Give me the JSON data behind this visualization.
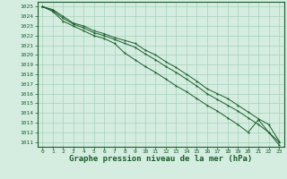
{
  "x": [
    0,
    1,
    2,
    3,
    4,
    5,
    6,
    7,
    8,
    9,
    10,
    11,
    12,
    13,
    14,
    15,
    16,
    17,
    18,
    19,
    20,
    21,
    22,
    23
  ],
  "line1": [
    1025,
    1024.7,
    1024.0,
    1023.3,
    1023.0,
    1022.5,
    1022.2,
    1021.8,
    1021.5,
    1021.2,
    1020.5,
    1020.0,
    1019.3,
    1018.7,
    1018.0,
    1017.3,
    1016.5,
    1016.0,
    1015.5,
    1014.8,
    1014.1,
    1013.4,
    1012.8,
    1011.1
  ],
  "line2": [
    1025,
    1024.6,
    1023.8,
    1023.2,
    1022.8,
    1022.3,
    1022.0,
    1021.6,
    1021.2,
    1020.8,
    1020.1,
    1019.5,
    1018.8,
    1018.2,
    1017.5,
    1016.8,
    1016.0,
    1015.4,
    1014.8,
    1014.2,
    1013.5,
    1012.8,
    1012.0,
    1011.0
  ],
  "line3": [
    1025,
    1024.5,
    1023.5,
    1023.0,
    1022.5,
    1022.0,
    1021.7,
    1021.2,
    1020.2,
    1019.5,
    1018.8,
    1018.2,
    1017.5,
    1016.8,
    1016.2,
    1015.5,
    1014.8,
    1014.2,
    1013.5,
    1012.8,
    1012.0,
    1013.3,
    1012.0,
    1010.7
  ],
  "bg_color": "#d4ede0",
  "grid_color": "#a8cfb8",
  "line_color": "#1a5c2a",
  "title": "Graphe pression niveau de la mer (hPa)",
  "ylim": [
    1010.5,
    1025.5
  ],
  "xlim": [
    -0.5,
    23.5
  ],
  "yticks": [
    1011,
    1012,
    1013,
    1014,
    1015,
    1016,
    1017,
    1018,
    1019,
    1020,
    1021,
    1022,
    1023,
    1024,
    1025
  ],
  "xticks": [
    0,
    1,
    2,
    3,
    4,
    5,
    6,
    7,
    8,
    9,
    10,
    11,
    12,
    13,
    14,
    15,
    16,
    17,
    18,
    19,
    20,
    21,
    22,
    23
  ],
  "xlabel_fontsize": 6.5,
  "tick_fontsize": 4.5
}
